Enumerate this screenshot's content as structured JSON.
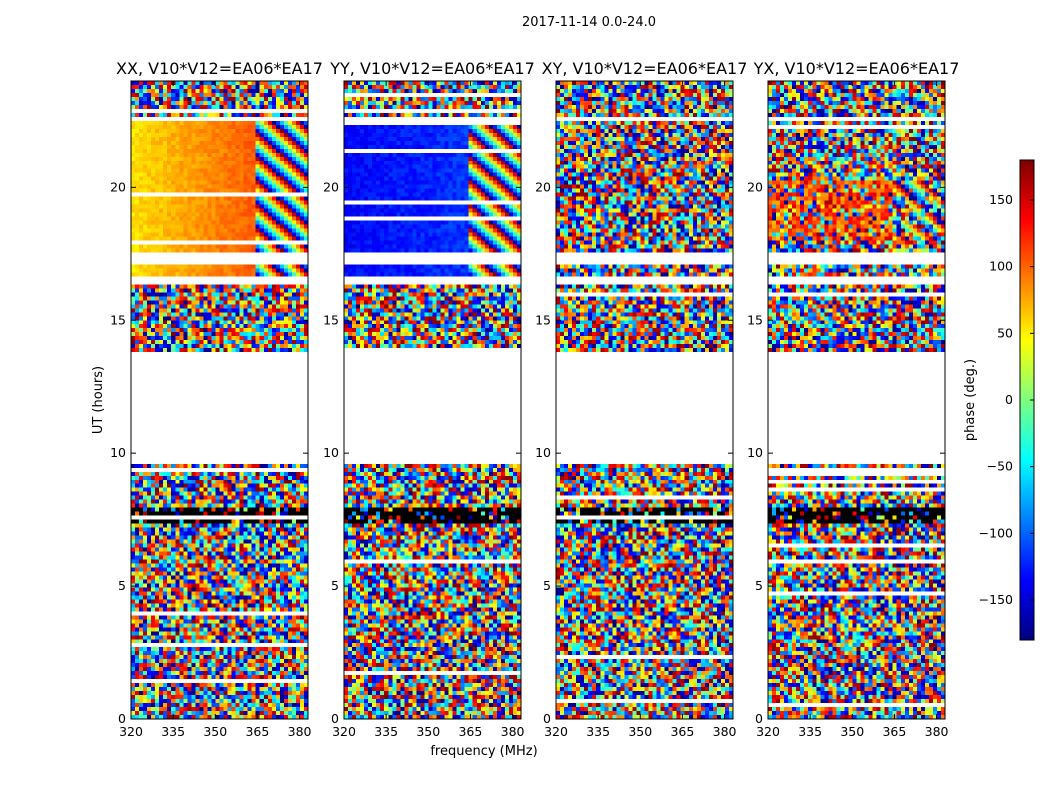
{
  "figure": {
    "suptitle": "2017-11-14 0.0-24.0"
  },
  "chart_data": {
    "type": "heatmap",
    "xlabel": "frequency (MHz)",
    "ylabel": "UT (hours)",
    "xlim": [
      320,
      383
    ],
    "ylim": [
      0,
      24
    ],
    "x_ticks": [
      320,
      335,
      350,
      365,
      380
    ],
    "y_ticks": [
      0,
      5,
      10,
      15,
      20
    ],
    "colorbar": {
      "label": "phase (deg.)",
      "range": [
        -180,
        180
      ],
      "ticks": [
        150,
        100,
        50,
        0,
        -50,
        -100,
        -150
      ],
      "tick_labels": [
        "150",
        "100",
        "50",
        "0",
        "−50",
        "−100",
        "−150"
      ],
      "colormap": "jet",
      "colors": [
        "#00007f",
        "#0000ff",
        "#007fff",
        "#00ffff",
        "#7fff7f",
        "#ffff00",
        "#ff7f00",
        "#ff0000",
        "#7f0000"
      ]
    },
    "panels": [
      {
        "title": "XX, V10*V12=EA06*EA17",
        "scheme": "XX"
      },
      {
        "title": "YY, V10*V12=EA06*EA17",
        "scheme": "YY"
      },
      {
        "title": "XY, V10*V12=EA06*EA17",
        "scheme": "XY"
      },
      {
        "title": "YX, V10*V12=EA06*EA17",
        "scheme": "YX"
      }
    ],
    "data_gaps_ut": [
      [
        9.6,
        13.8
      ],
      [
        16.3,
        16.6
      ],
      [
        17.1,
        17.6
      ],
      [
        22.5,
        22.7
      ]
    ],
    "phase_behavior": {
      "XX": "coherent yellow-orange phase (about 50-100 deg) during 16.6-22.5 UT below 364 MHz, strong fringing above 364 MHz, noisy elsewhere",
      "YY": "coherent blue phase (about -120 to -150 deg) during 16.6-22.5 UT below 364 MHz, fringing above, noisy elsewhere",
      "XY": "mostly noisy phase at all times",
      "YX": "mostly noisy phase, reddish tint around 18-20 UT"
    }
  }
}
